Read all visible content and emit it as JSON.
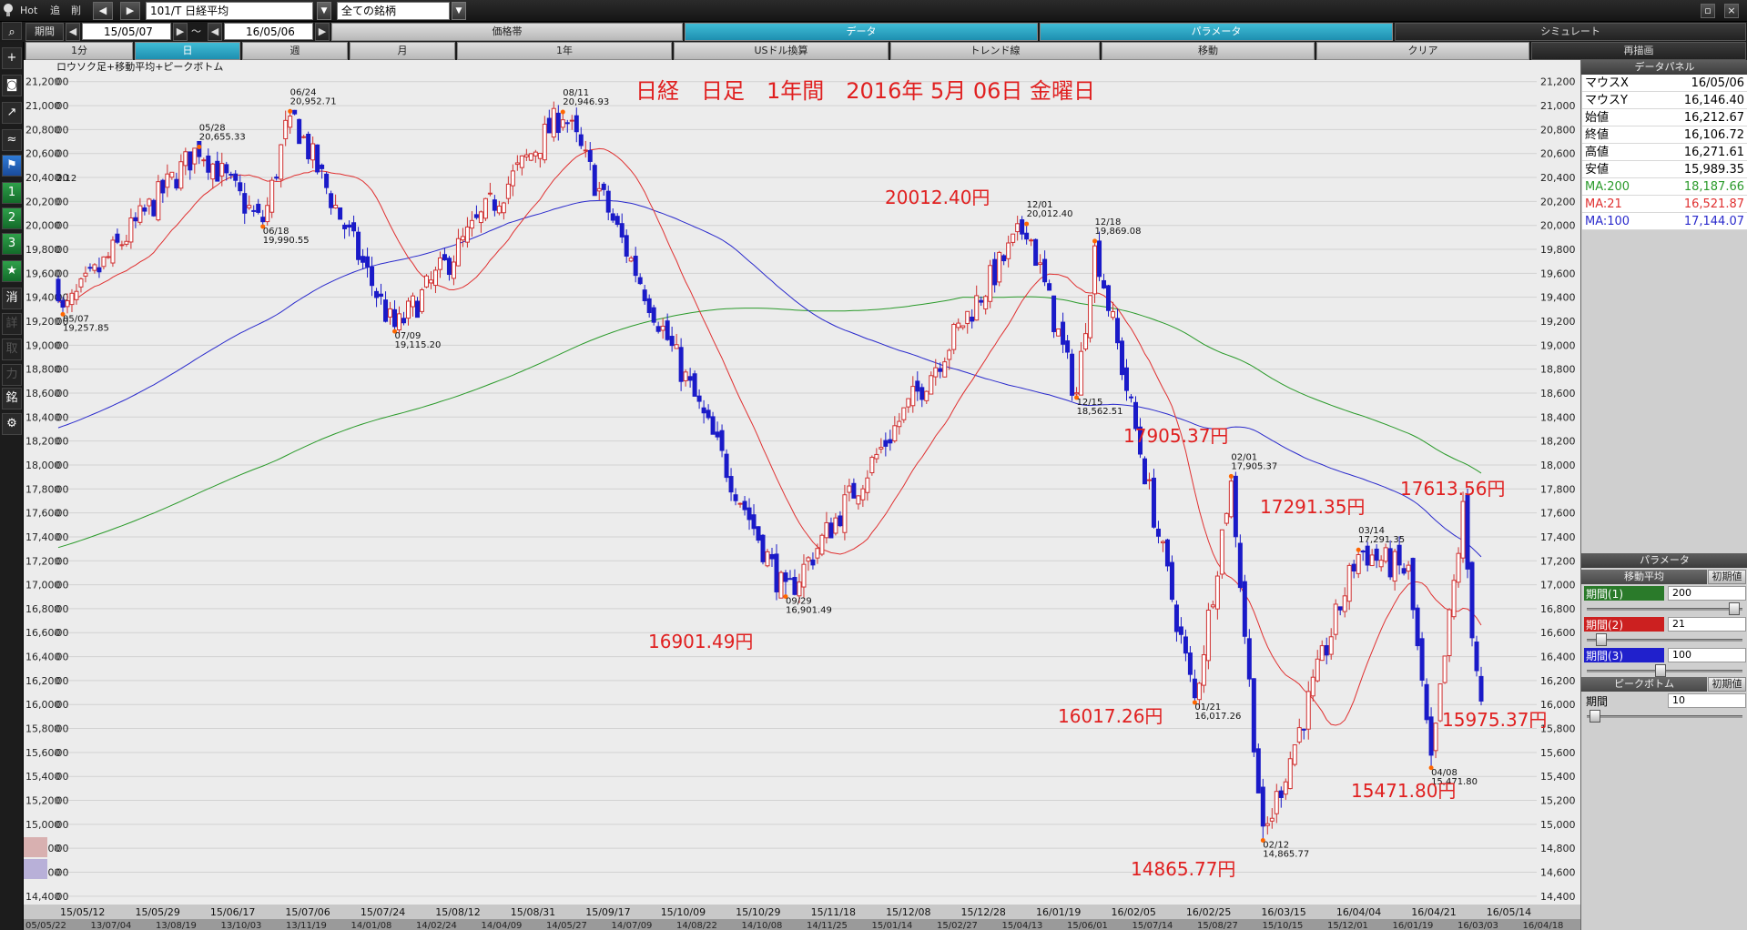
{
  "toolbar": {
    "hot": "Hot",
    "tsui": "追",
    "sakujo": "削",
    "prev_arrow": "◀",
    "next_arrow": "▶",
    "symbol": "101/T 日経平均",
    "universe": "全ての銘柄",
    "period_label": "期間",
    "date_from": "15/05/07",
    "tilde": "～",
    "date_to": "16/05/06"
  },
  "tabs_row1": [
    "価格帯",
    "データ",
    "パラメータ",
    "シミュレート"
  ],
  "tabs_row2": [
    "1分",
    "日",
    "週",
    "月",
    "1年",
    "USドル換算",
    "トレンド線",
    "移動",
    "クリア",
    "再描画"
  ],
  "sidebar_icons": [
    "search-icon",
    "crosshair-icon",
    "camera-icon",
    "chart-line-icon",
    "chart-area-icon",
    "flag-icon",
    "1",
    "2",
    "3",
    "★",
    "消",
    "詳",
    "取",
    "力",
    "銘",
    "gear-icon"
  ],
  "chart_data": {
    "type": "candlestick",
    "indicator_label": "ロウソク足+移動平均+ピークボトム",
    "title": "日経　日足　1年間　2016年 5月 06日 金曜日",
    "y_ticks": [
      "21,200",
      "21,000",
      "20,800",
      "20,600",
      "20,400",
      "20,200",
      "20,000",
      "19,800",
      "19,600",
      "19,400",
      "19,200",
      "19,000",
      "18,800",
      "18,600",
      "18,400",
      "18,200",
      "18,000",
      "17,800",
      "17,600",
      "17,400",
      "17,200",
      "17,000",
      "16,800",
      "16,600",
      "16,400",
      "16,200",
      "16,000",
      "15,800",
      "15,600",
      "15,400",
      "15,200",
      "15,000",
      "14,800",
      "14,600",
      "14,400"
    ],
    "ylim": [
      14300,
      21350
    ],
    "x_ticks": [
      "15/05/12",
      "15/05/29",
      "15/06/17",
      "15/07/06",
      "15/07/24",
      "15/08/12",
      "15/08/31",
      "15/09/17",
      "15/10/09",
      "15/10/29",
      "15/11/18",
      "15/12/08",
      "15/12/28",
      "16/01/19",
      "16/02/05",
      "16/02/25",
      "16/03/15",
      "16/04/04",
      "16/04/21",
      "16/05/14"
    ],
    "lower_dates": [
      "05/05/22",
      "13/07/04",
      "13/08/19",
      "13/10/03",
      "13/11/19",
      "14/01/08",
      "14/02/24",
      "14/04/09",
      "14/05/27",
      "14/07/09",
      "14/08/22",
      "14/10/08",
      "14/11/25",
      "15/01/14",
      "15/02/27",
      "15/04/13",
      "15/06/01",
      "15/07/14",
      "15/08/27",
      "15/10/15",
      "15/12/01",
      "16/01/19",
      "16/03/03",
      "16/04/18"
    ],
    "peaks": [
      {
        "i": 1,
        "v": 19257.85,
        "date": "05/07",
        "val": "19,257.85",
        "kind": "b"
      },
      {
        "i": 31,
        "v": 20655.33,
        "date": "05/28",
        "val": "20,655.33",
        "kind": "p"
      },
      {
        "i": 45,
        "v": 19990.55,
        "date": "06/18",
        "val": "19,990.55",
        "kind": "b"
      },
      {
        "i": 51,
        "v": 20952.71,
        "date": "06/24",
        "val": "20,952.71",
        "kind": "p"
      },
      {
        "i": 74,
        "v": 19115.2,
        "date": "07/09",
        "val": "19,115.20",
        "kind": "b"
      },
      {
        "i": 111,
        "v": 20946.93,
        "date": "08/11",
        "val": "20,946.93",
        "kind": "p"
      },
      {
        "i": 160,
        "v": 16901.49,
        "date": "09/29",
        "val": "16,901.49",
        "kind": "b"
      },
      {
        "i": 213,
        "v": 20012.4,
        "date": "12/01",
        "val": "20,012.40",
        "kind": "p"
      },
      {
        "i": 224,
        "v": 18562.51,
        "date": "12/15",
        "val": "18,562.51",
        "kind": "b"
      },
      {
        "i": 228,
        "v": 19869.08,
        "date": "12/18",
        "val": "19,869.08",
        "kind": "p"
      },
      {
        "i": 250,
        "v": 16017.26,
        "date": "01/21",
        "val": "16,017.26",
        "kind": "b"
      },
      {
        "i": 258,
        "v": 17905.37,
        "date": "02/01",
        "val": "17,905.37",
        "kind": "p"
      },
      {
        "i": 265,
        "v": 14865.77,
        "date": "02/12",
        "val": "14,865.77",
        "kind": "b"
      },
      {
        "i": 286,
        "v": 17291.35,
        "date": "03/14",
        "val": "17,291.35",
        "kind": "p"
      },
      {
        "i": 302,
        "v": 15471.8,
        "date": "04/08",
        "val": "15,471.80",
        "kind": "b"
      }
    ],
    "big_labels": [
      "20012.40円",
      "16901.49円",
      "17905.37円",
      "16017.26円",
      "14865.77円",
      "17291.35円",
      "15471.80円",
      "17613.56円",
      "15975.37円"
    ],
    "left_edge_label": "2.12",
    "ma_colors": {
      "ma21": "#e03030",
      "ma100": "#2a2acc",
      "ma200": "#2a9a2a"
    }
  },
  "panel": {
    "data_header": "データパネル",
    "rows": [
      [
        "マウスX",
        "16/05/06"
      ],
      [
        "マウスY",
        "16,146.40"
      ],
      [
        "始値",
        "16,212.67"
      ],
      [
        "終値",
        "16,106.72"
      ],
      [
        "高値",
        "16,271.61"
      ],
      [
        "安値",
        "15,989.35"
      ]
    ],
    "ma_rows": [
      {
        "k": "MA:200",
        "v": "18,187.66",
        "color": "#2a9a2a"
      },
      {
        "k": "MA:21",
        "v": "16,521.87",
        "color": "#e03030"
      },
      {
        "k": "MA:100",
        "v": "17,144.07",
        "color": "#2a2acc"
      }
    ],
    "param_header": "パラメータ",
    "ma_section": "移動平均",
    "init": "初期値",
    "periods": [
      {
        "label": "期間(1)",
        "value": "200",
        "color": "#2a7a2a",
        "pos": 0.98
      },
      {
        "label": "期間(2)",
        "value": "21",
        "color": "#cc2020",
        "pos": 0.06
      },
      {
        "label": "期間(3)",
        "value": "100",
        "color": "#2020cc",
        "pos": 0.47
      }
    ],
    "pb_section": "ピークボトム",
    "pb_period_label": "期間",
    "pb_period_value": "10",
    "pb_pos": 0.02
  }
}
